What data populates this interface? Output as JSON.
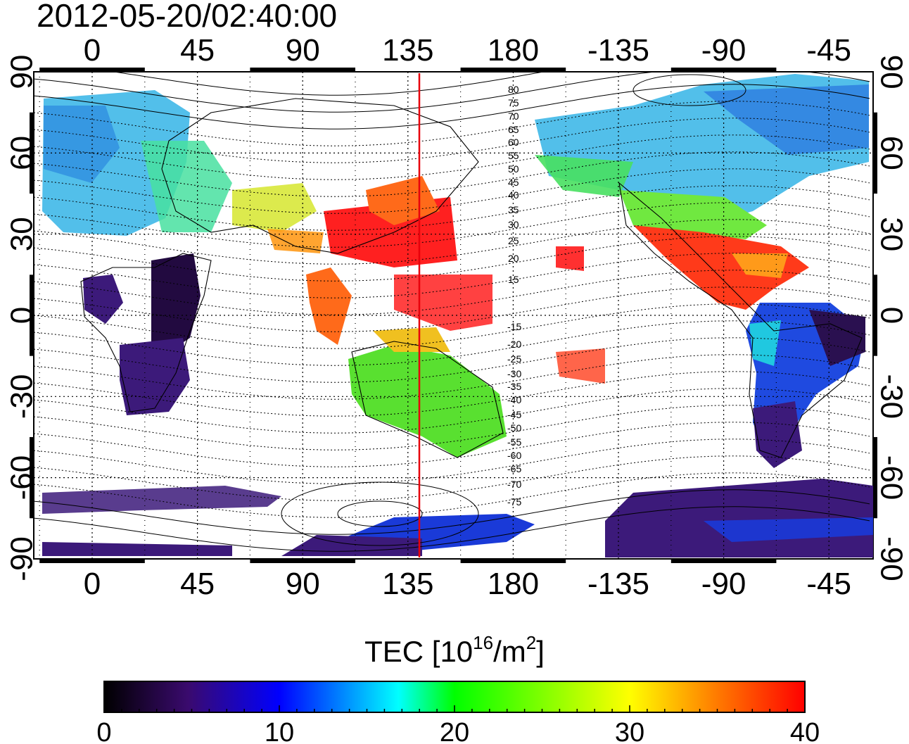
{
  "title": "2012-05-20/02:40:00",
  "map": {
    "lon_ticks_top": [
      "0",
      "45",
      "90",
      "135",
      "180",
      "-135",
      "-90",
      "-45"
    ],
    "lon_ticks_bottom": [
      "0",
      "45",
      "90",
      "135",
      "180",
      "-135",
      "-90",
      "-45"
    ],
    "lat_ticks_left": [
      "90",
      "60",
      "30",
      "0",
      "-30",
      "-60",
      "-90"
    ],
    "lat_ticks_right": [
      "90",
      "60",
      "30",
      "0",
      "-30",
      "-60",
      "-90"
    ],
    "dip_latitude_labels_north": [
      "80",
      "75",
      "70",
      "65",
      "60",
      "55",
      "50",
      "45",
      "40",
      "35",
      "30",
      "25",
      "20",
      "15"
    ],
    "dip_latitude_labels_south": [
      "-15",
      "-20",
      "-25",
      "-30",
      "-35",
      "-40",
      "-45",
      "-50",
      "-55",
      "-60",
      "-65",
      "-70",
      "-75"
    ],
    "marker_longitude": 140,
    "marker_color": "#e8000b"
  },
  "colorbar": {
    "label_prefix": "TEC  [10",
    "label_exp1": "16",
    "label_mid": "/m",
    "label_exp2": "2",
    "label_suffix": "]",
    "ticks": [
      "0",
      "10",
      "20",
      "30",
      "40"
    ],
    "min": 0,
    "max": 40,
    "colors": [
      "#000000",
      "#3a0a6e",
      "#0000ff",
      "#00ffff",
      "#00ff00",
      "#ffff00",
      "#ff7f00",
      "#ff0000"
    ]
  }
}
